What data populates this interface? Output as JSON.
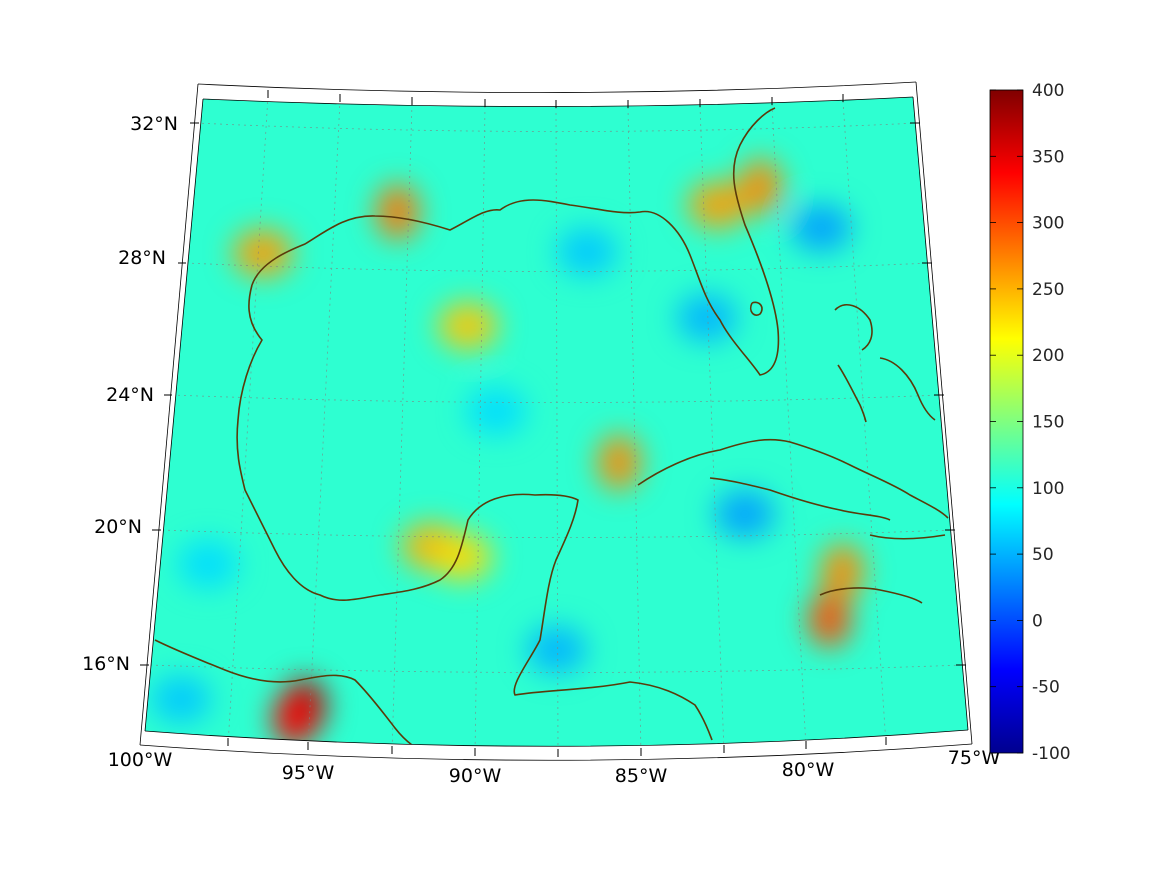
{
  "map": {
    "lat_labels": [
      "32°N",
      "28°N",
      "24°N",
      "20°N",
      "16°N"
    ],
    "lon_labels": [
      "100°W",
      "95°W",
      "90°W",
      "85°W",
      "80°W",
      "75°W"
    ],
    "colormap": "jet",
    "coastline_color": "#5a3a0a"
  },
  "colorbar": {
    "labels": [
      "400",
      "350",
      "300",
      "250",
      "200",
      "150",
      "100",
      "50",
      "0",
      "-50",
      "-100"
    ],
    "min": -100,
    "max": 400
  },
  "field": {
    "background_value": 110,
    "anomalies": [
      {
        "lon": -93.0,
        "lat": 29.6,
        "value": 280
      },
      {
        "lon": -97.5,
        "lat": 28.2,
        "value": 260
      },
      {
        "lon": -90.5,
        "lat": 26.3,
        "value": 240
      },
      {
        "lon": -85.5,
        "lat": 22.3,
        "value": 270
      },
      {
        "lon": -91.5,
        "lat": 19.8,
        "value": 250
      },
      {
        "lon": -90.5,
        "lat": 19.5,
        "value": 230
      },
      {
        "lon": -78.5,
        "lat": 18.9,
        "value": 270
      },
      {
        "lon": -79.0,
        "lat": 17.5,
        "value": 300
      },
      {
        "lon": -95.2,
        "lat": 15.0,
        "value": 380
      },
      {
        "lon": -95.5,
        "lat": 14.6,
        "value": 340
      },
      {
        "lon": -80.5,
        "lat": 30.3,
        "value": 270
      },
      {
        "lon": -82.0,
        "lat": 29.8,
        "value": 260
      },
      {
        "lon": -78.5,
        "lat": 29.0,
        "value": 40
      },
      {
        "lon": -82.5,
        "lat": 26.5,
        "value": 50
      },
      {
        "lon": -86.5,
        "lat": 28.5,
        "value": 60
      },
      {
        "lon": -81.5,
        "lat": 20.7,
        "value": 40
      },
      {
        "lon": -89.5,
        "lat": 23.8,
        "value": 70
      },
      {
        "lon": -98.5,
        "lat": 19.0,
        "value": 70
      },
      {
        "lon": -87.5,
        "lat": 16.8,
        "value": 50
      },
      {
        "lon": -99.0,
        "lat": 15.0,
        "value": 60
      }
    ]
  }
}
